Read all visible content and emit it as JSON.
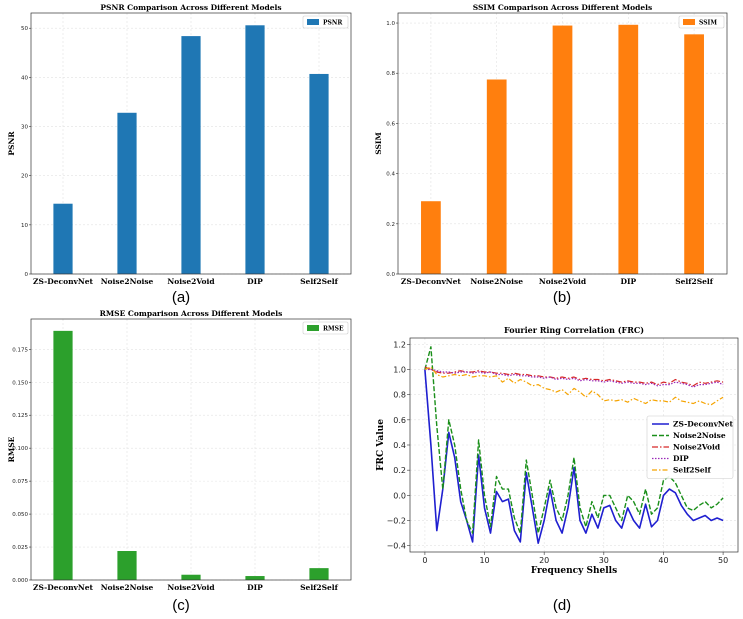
{
  "chart_data": [
    {
      "type": "bar",
      "title": "PSNR Comparison Across Different Models",
      "ylabel": "PSNR",
      "xlabel": "",
      "categories": [
        "ZS-DeconvNet",
        "Noise2Noise",
        "Noise2Void",
        "DIP",
        "Self2Self"
      ],
      "values": [
        14.3,
        32.8,
        48.4,
        50.6,
        40.7
      ],
      "ylim": [
        0,
        53.1
      ],
      "yticks": [
        0,
        10,
        20,
        30,
        40,
        50
      ],
      "tick_labels": [
        "0",
        "10",
        "20",
        "30",
        "40",
        "50"
      ],
      "legend": "PSNR",
      "color": "#1f77b4",
      "caption": "(a)"
    },
    {
      "type": "bar",
      "title": "SSIM Comparison Across Different Models",
      "ylabel": "SSIM",
      "xlabel": "",
      "categories": [
        "ZS-DeconvNet",
        "Noise2Noise",
        "Noise2Void",
        "DIP",
        "Self2Self"
      ],
      "values": [
        0.29,
        0.775,
        0.99,
        0.993,
        0.955
      ],
      "ylim": [
        0,
        1.04
      ],
      "yticks": [
        0,
        0.2,
        0.4,
        0.6,
        0.8,
        1.0
      ],
      "tick_labels": [
        "0.0",
        "0.2",
        "0.4",
        "0.6",
        "0.8",
        "1.0"
      ],
      "legend": "SSIM",
      "color": "#ff7f0e",
      "caption": "(b)"
    },
    {
      "type": "bar",
      "title": "RMSE Comparison Across Different Models",
      "ylabel": "RMSE",
      "xlabel": "",
      "categories": [
        "ZS-DeconvNet",
        "Noise2Noise",
        "Noise2Void",
        "DIP",
        "Self2Self"
      ],
      "values": [
        0.189,
        0.022,
        0.004,
        0.003,
        0.009
      ],
      "ylim": [
        0,
        0.198
      ],
      "yticks": [
        0,
        0.025,
        0.05,
        0.075,
        0.1,
        0.125,
        0.15,
        0.175
      ],
      "tick_labels": [
        "0.000",
        "0.025",
        "0.050",
        "0.075",
        "0.100",
        "0.125",
        "0.150",
        "0.175"
      ],
      "legend": "RMSE",
      "color": "#2ca02c",
      "caption": "(c)"
    },
    {
      "type": "line",
      "title": "Fourier Ring Correlation (FRC)",
      "xlabel": "Frequency Shells",
      "ylabel": "FRC Value",
      "xlim": [
        -2.5,
        52.5
      ],
      "ylim": [
        -0.45,
        1.25
      ],
      "xticks": [
        0,
        10,
        20,
        30,
        40,
        50
      ],
      "yticks": [
        -0.4,
        -0.2,
        0.0,
        0.2,
        0.4,
        0.6,
        0.8,
        1.0,
        1.2
      ],
      "ytick_labels": [
        "−0.4",
        "−0.2",
        "0.0",
        "0.2",
        "0.4",
        "0.6",
        "0.8",
        "1.0",
        "1.2"
      ],
      "caption": "(d)",
      "x": [
        0,
        1,
        2,
        3,
        4,
        5,
        6,
        7,
        8,
        9,
        10,
        11,
        12,
        13,
        14,
        15,
        16,
        17,
        18,
        19,
        20,
        21,
        22,
        23,
        24,
        25,
        26,
        27,
        28,
        29,
        30,
        31,
        32,
        33,
        34,
        35,
        36,
        37,
        38,
        39,
        40,
        41,
        42,
        43,
        44,
        45,
        46,
        47,
        48,
        49,
        50
      ],
      "series": [
        {
          "name": "ZS-DeconvNet",
          "color": "#1f1fd0",
          "dash": "solid",
          "width": 1.6,
          "values": [
            1.0,
            0.4,
            -0.28,
            0.05,
            0.5,
            0.3,
            -0.05,
            -0.2,
            -0.37,
            0.32,
            -0.1,
            -0.3,
            0.03,
            -0.05,
            -0.03,
            -0.28,
            -0.37,
            0.18,
            -0.1,
            -0.38,
            -0.2,
            0.05,
            -0.2,
            -0.3,
            -0.1,
            0.22,
            -0.2,
            -0.3,
            -0.15,
            -0.26,
            -0.1,
            -0.08,
            -0.2,
            -0.26,
            -0.1,
            -0.2,
            -0.26,
            -0.07,
            -0.25,
            -0.2,
            0.0,
            0.05,
            0.02,
            -0.08,
            -0.15,
            -0.2,
            -0.18,
            -0.16,
            -0.2,
            -0.18,
            -0.2
          ]
        },
        {
          "name": "Noise2Noise",
          "color": "#1a8f1a",
          "dash": "5,2",
          "width": 1.4,
          "values": [
            1.0,
            1.18,
            0.55,
            0.05,
            0.6,
            0.4,
            0.05,
            -0.2,
            -0.3,
            0.44,
            0.0,
            -0.25,
            0.15,
            0.05,
            0.05,
            -0.18,
            -0.3,
            0.28,
            0.0,
            -0.3,
            -0.1,
            0.12,
            -0.1,
            -0.2,
            0.0,
            0.3,
            -0.1,
            -0.25,
            -0.05,
            -0.18,
            0.0,
            0.0,
            -0.1,
            -0.2,
            0.0,
            -0.05,
            -0.15,
            0.05,
            -0.15,
            -0.1,
            0.12,
            0.15,
            0.1,
            0.0,
            -0.1,
            -0.12,
            -0.08,
            -0.05,
            -0.1,
            -0.07,
            -0.02
          ]
        },
        {
          "name": "Noise2Void",
          "color": "#d62728",
          "dash": "6,2,1.5,2",
          "width": 1.2,
          "values": [
            1.02,
            1.0,
            0.98,
            0.97,
            0.97,
            0.98,
            0.99,
            0.98,
            0.98,
            0.99,
            0.98,
            0.98,
            0.97,
            0.97,
            0.96,
            0.97,
            0.96,
            0.96,
            0.95,
            0.95,
            0.94,
            0.94,
            0.93,
            0.94,
            0.93,
            0.94,
            0.92,
            0.93,
            0.92,
            0.92,
            0.91,
            0.92,
            0.91,
            0.9,
            0.91,
            0.9,
            0.9,
            0.89,
            0.9,
            0.88,
            0.9,
            0.89,
            0.92,
            0.9,
            0.89,
            0.87,
            0.9,
            0.89,
            0.9,
            0.91,
            0.9
          ]
        },
        {
          "name": "DIP",
          "color": "#9a28b8",
          "dash": "1.5,1.5",
          "width": 1.2,
          "values": [
            1.0,
            1.0,
            0.99,
            0.98,
            0.98,
            0.97,
            0.98,
            0.98,
            0.97,
            0.98,
            0.97,
            0.98,
            0.96,
            0.96,
            0.95,
            0.96,
            0.95,
            0.95,
            0.94,
            0.94,
            0.93,
            0.94,
            0.92,
            0.93,
            0.92,
            0.93,
            0.91,
            0.92,
            0.91,
            0.91,
            0.9,
            0.91,
            0.9,
            0.89,
            0.9,
            0.89,
            0.89,
            0.88,
            0.89,
            0.87,
            0.88,
            0.88,
            0.9,
            0.89,
            0.88,
            0.86,
            0.88,
            0.88,
            0.89,
            0.9,
            0.88
          ]
        },
        {
          "name": "Self2Self",
          "color": "#f5a300",
          "dash": "5,2,1.5,2",
          "width": 1.2,
          "values": [
            1.0,
            1.02,
            0.96,
            0.94,
            0.95,
            0.96,
            0.95,
            0.96,
            0.94,
            0.95,
            0.95,
            0.94,
            0.95,
            0.9,
            0.93,
            0.89,
            0.92,
            0.9,
            0.87,
            0.88,
            0.85,
            0.84,
            0.82,
            0.84,
            0.8,
            0.85,
            0.82,
            0.78,
            0.83,
            0.8,
            0.75,
            0.76,
            0.75,
            0.76,
            0.74,
            0.77,
            0.75,
            0.73,
            0.76,
            0.75,
            0.75,
            0.74,
            0.78,
            0.75,
            0.74,
            0.73,
            0.75,
            0.73,
            0.72,
            0.75,
            0.78
          ]
        }
      ]
    }
  ]
}
